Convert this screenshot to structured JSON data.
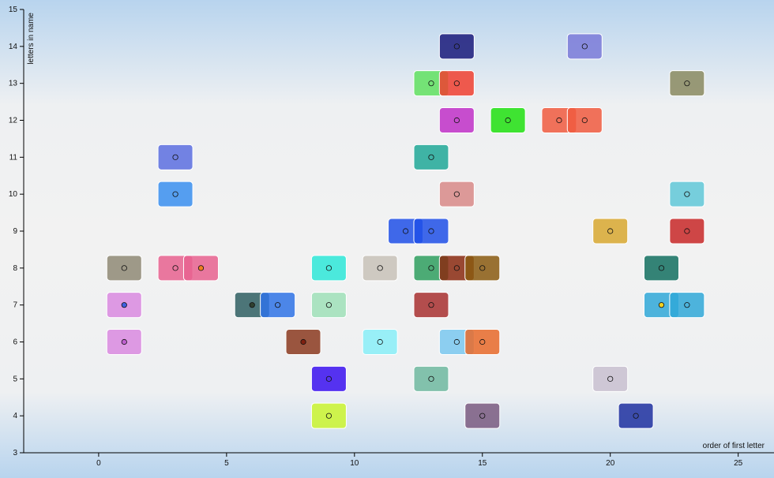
{
  "chart_data": {
    "type": "scatter",
    "x_label": "order of first letter",
    "y_label": "letters in name",
    "xlim": [
      -2.93,
      26.4
    ],
    "ylim": [
      3,
      15
    ],
    "xticks": [
      0,
      5,
      10,
      15,
      20,
      25
    ],
    "yticks": [
      3,
      4,
      5,
      6,
      7,
      8,
      9,
      10,
      11,
      12,
      13,
      14,
      15
    ],
    "x": [
      1,
      1,
      1,
      3,
      3,
      3,
      4,
      6,
      7,
      8,
      9,
      9,
      9,
      9,
      11,
      11,
      12,
      13,
      13,
      13,
      13,
      13,
      13,
      14,
      14,
      14,
      14,
      14,
      14,
      15,
      15,
      15,
      16,
      18,
      19,
      19,
      20,
      20,
      21,
      22,
      22,
      23,
      23,
      23,
      23
    ],
    "y": [
      8,
      7,
      6,
      11,
      10,
      8,
      8,
      7,
      7,
      6,
      8,
      7,
      5,
      4,
      8,
      6,
      9,
      13,
      11,
      9,
      8,
      7,
      5,
      14,
      13,
      12,
      10,
      8,
      6,
      8,
      6,
      4,
      12,
      12,
      14,
      12,
      9,
      5,
      4,
      8,
      7,
      13,
      10,
      9,
      7
    ],
    "colors": [
      "#8f8a76",
      "#d98ae0",
      "#d98ae0",
      "#5c6fe0",
      "#3a8ff0",
      "#e8628f",
      "#e8628f",
      "#2f5f63",
      "#2f73e6",
      "#8b3a20",
      "#2ee8d8",
      "#9fe0b8",
      "#3a10f0",
      "#caf52f",
      "#c8c2b8",
      "#88eef8",
      "#2050e8",
      "#60e060",
      "#20a898",
      "#2050e8",
      "#2f9f5f",
      "#a83030",
      "#6fb8a0",
      "#1a1a7a",
      "#f04030",
      "#c030c8",
      "#d88a88",
      "#8a2a10",
      "#7ac8f0",
      "#8a5a10",
      "#e86a2a",
      "#7a5a80",
      "#20e010",
      "#f05a40",
      "#7a7ad8",
      "#f05a40",
      "#d8a830",
      "#c8c0d0",
      "#1e30a0",
      "#137060",
      "#30a8d8",
      "#8a8a60",
      "#60c8d8",
      "#c82828",
      "#30a8d8"
    ],
    "dot_colors": [
      "none",
      "#4060e0",
      "#c060d0",
      "none",
      "none",
      "none",
      "#f08020",
      "#304030",
      "none",
      "#802010",
      "none",
      "none",
      "none",
      "none",
      "none",
      "none",
      "none",
      "none",
      "none",
      "none",
      "none",
      "none",
      "none",
      "none",
      "none",
      "none",
      "none",
      "none",
      "none",
      "none",
      "none",
      "none",
      "none",
      "none",
      "none",
      "none",
      "none",
      "none",
      "none",
      "none",
      "#f0d020",
      "none",
      "none",
      "none",
      "none"
    ]
  }
}
